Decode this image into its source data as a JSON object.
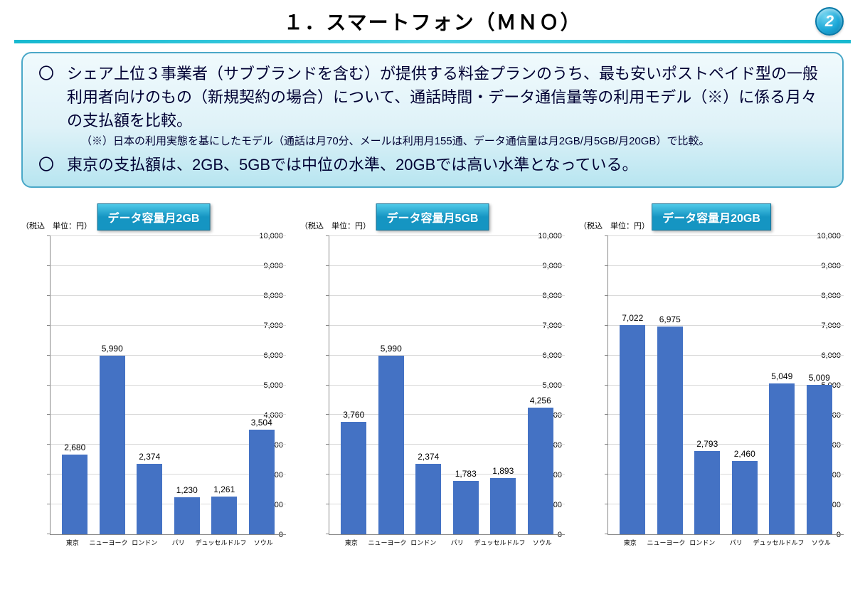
{
  "header": {
    "title": "１．スマートフォン（ＭＮＯ）",
    "page_number": "2",
    "badge_gradient": [
      "#6fd4f0",
      "#1da8d8",
      "#0a7aa8"
    ],
    "divider_color": "#17b9d0"
  },
  "summary": {
    "box_border": "#4aa8c8",
    "box_bg_gradient": [
      "#f0fafd",
      "#dff2f8",
      "#b7e5f0"
    ],
    "bullets": [
      {
        "main": "シェア上位３事業者（サブブランドを含む）が提供する料金プランのうち、最も安いポストペイド型の一般利用者向けのもの（新規契約の場合）について、通話時間・データ通信量等の利用モデル（※）に係る月々の支払額を比較。",
        "note": "（※）日本の利用実態を基にしたモデル（通話は月70分、メールは利用月155通、データ通信量は月2GB/月5GB/月20GB）で比較。"
      },
      {
        "main": "東京の支払額は、2GB、5GBでは中位の水準、20GBでは高い水準となっている。",
        "note": null
      }
    ]
  },
  "charts": {
    "common": {
      "axis_label": "（税込　単位：円）",
      "categories": [
        "東京",
        "ニューヨーク",
        "ロンドン",
        "パリ",
        "デュッセルドルフ",
        "ソウル"
      ],
      "ylim": [
        0,
        10000
      ],
      "ytick_step": 1000,
      "bar_color": "#4472c4",
      "grid_color": "#d9d9d9",
      "axis_color": "#888888",
      "label_fontsize": 11,
      "category_fontsize": 9,
      "value_fontsize": 12,
      "bar_width_ratio": 0.68
    },
    "panels": [
      {
        "title": "データ容量月2GB",
        "values": [
          2680,
          5990,
          2374,
          1230,
          1261,
          3504
        ]
      },
      {
        "title": "データ容量月5GB",
        "values": [
          3760,
          5990,
          2374,
          1783,
          1893,
          4256
        ]
      },
      {
        "title": "データ容量月20GB",
        "values": [
          7022,
          6975,
          2793,
          2460,
          5049,
          5009
        ]
      }
    ],
    "badge_gradient": [
      "#4fc9e8",
      "#1595c2"
    ],
    "badge_border": "#0a6a90"
  }
}
